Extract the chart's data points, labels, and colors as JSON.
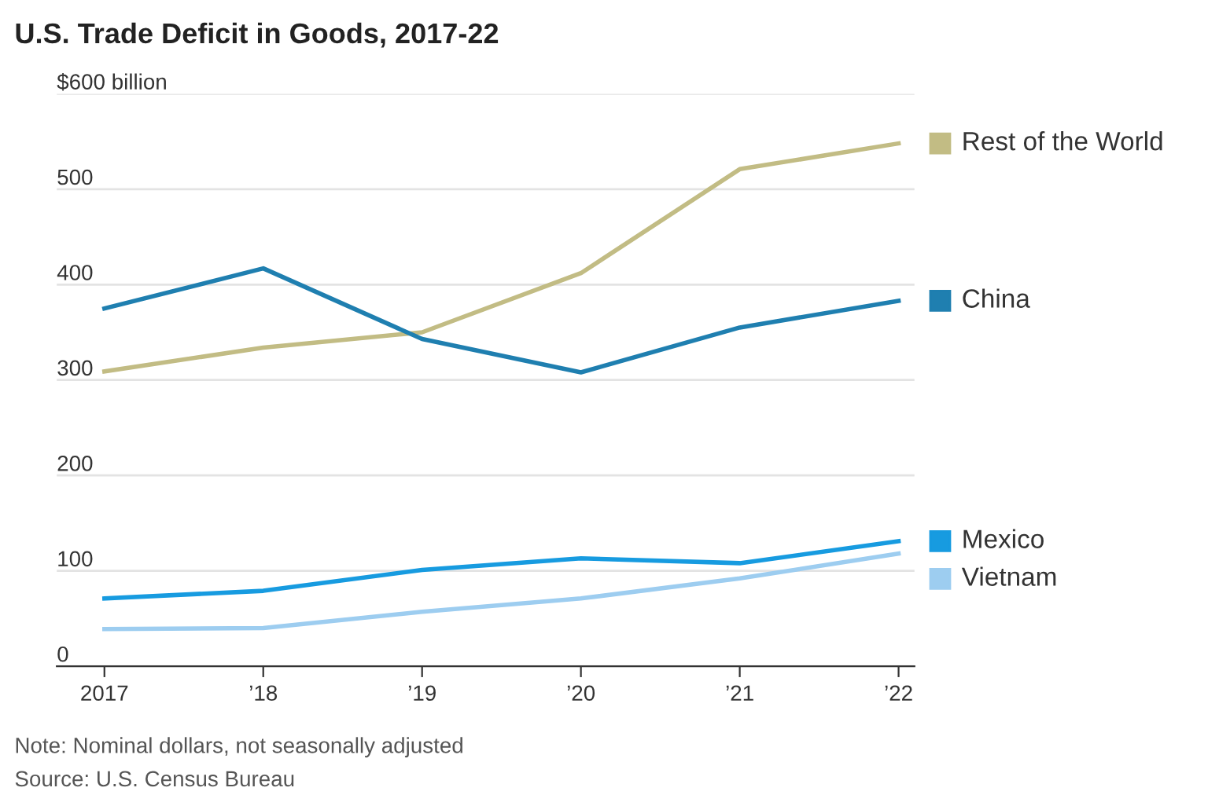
{
  "chart_data": {
    "type": "line",
    "title": "U.S. Trade Deficit in Goods, 2017-22",
    "categories": [
      "2017",
      "’18",
      "’19",
      "’20",
      "’21",
      "’22"
    ],
    "series": [
      {
        "name": "Rest of the World",
        "color": "#c2bc84",
        "values": [
          309,
          334,
          350,
          412,
          521,
          548
        ]
      },
      {
        "name": "China",
        "color": "#1f7fb0",
        "values": [
          375,
          417,
          343,
          308,
          355,
          383
        ]
      },
      {
        "name": "Mexico",
        "color": "#179be0",
        "values": [
          71,
          79,
          101,
          113,
          108,
          131
        ]
      },
      {
        "name": "Vietnam",
        "color": "#9dcdf0",
        "values": [
          39,
          40,
          57,
          71,
          92,
          118
        ]
      }
    ],
    "ylim": [
      0,
      600
    ],
    "yticks": [
      0,
      100,
      200,
      300,
      400,
      500,
      {
        "value": 600,
        "label": "$600 billion"
      }
    ],
    "grid": "y",
    "legend": "right",
    "marker": "none",
    "line_style": "solid",
    "annotations": [
      "Note: Nominal dollars, not seasonally adjusted",
      "Source: U.S. Census Bureau"
    ]
  }
}
